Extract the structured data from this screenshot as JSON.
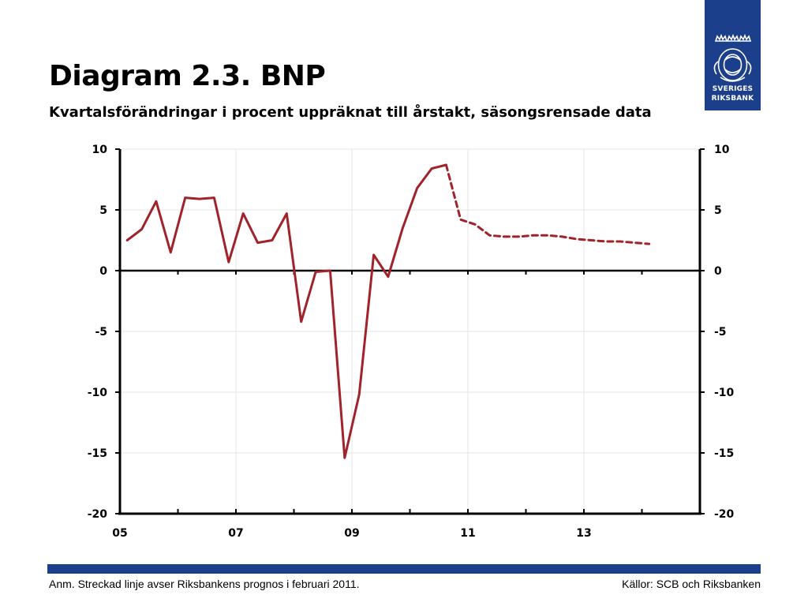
{
  "header": {
    "title": "Diagram 2.3. BNP",
    "subtitle": "Kvartalsförändringar i procent uppräknat till årstakt, säsongsrensade data"
  },
  "logo": {
    "line1": "SVERIGES",
    "line2": "RIKSBANK",
    "background": "#1c3f8c"
  },
  "footer": {
    "note": "Anm. Streckad linje avser Riksbankens prognos i februari 2011.",
    "sources": "Källor: SCB och Riksbanken",
    "bar_color": "#1c3f8c"
  },
  "chart_data": {
    "type": "line",
    "title": "",
    "xlabel": "",
    "ylabel": "",
    "ylim": [
      -20,
      10
    ],
    "y_ticks": [
      10,
      5,
      0,
      -5,
      -10,
      -15,
      -20
    ],
    "y_tick_labels": [
      "10",
      "5",
      "0",
      "-5",
      "-10",
      "-15",
      "-20"
    ],
    "x_range": [
      2005,
      2015
    ],
    "x_ticks": [
      2005,
      2007,
      2009,
      2011,
      2013
    ],
    "x_tick_labels": [
      "05",
      "07",
      "09",
      "11",
      "13"
    ],
    "grid": true,
    "line_color": "#a0232b",
    "series": [
      {
        "style": "solid",
        "x": [
          2005.125,
          2005.375,
          2005.625,
          2005.875,
          2006.125,
          2006.375,
          2006.625,
          2006.875,
          2007.125,
          2007.375,
          2007.625,
          2007.875,
          2008.125,
          2008.375,
          2008.625,
          2008.875,
          2009.125,
          2009.375,
          2009.625,
          2009.875,
          2010.125,
          2010.375,
          2010.625
        ],
        "y": [
          2.5,
          3.4,
          5.7,
          1.5,
          6.0,
          5.9,
          6.0,
          0.7,
          4.7,
          2.3,
          2.5,
          4.7,
          -4.2,
          -0.1,
          0.0,
          -15.4,
          -10.2,
          1.3,
          -0.5,
          3.5,
          6.8,
          8.4,
          8.7
        ]
      },
      {
        "style": "dashed",
        "x": [
          2010.625,
          2010.875,
          2011.125,
          2011.375,
          2011.625,
          2011.875,
          2012.125,
          2012.375,
          2012.625,
          2012.875,
          2013.125,
          2013.375,
          2013.625,
          2013.875,
          2014.125
        ],
        "y": [
          8.7,
          4.2,
          3.8,
          2.9,
          2.8,
          2.8,
          2.9,
          2.9,
          2.8,
          2.6,
          2.5,
          2.4,
          2.4,
          2.3,
          2.2
        ]
      }
    ]
  }
}
